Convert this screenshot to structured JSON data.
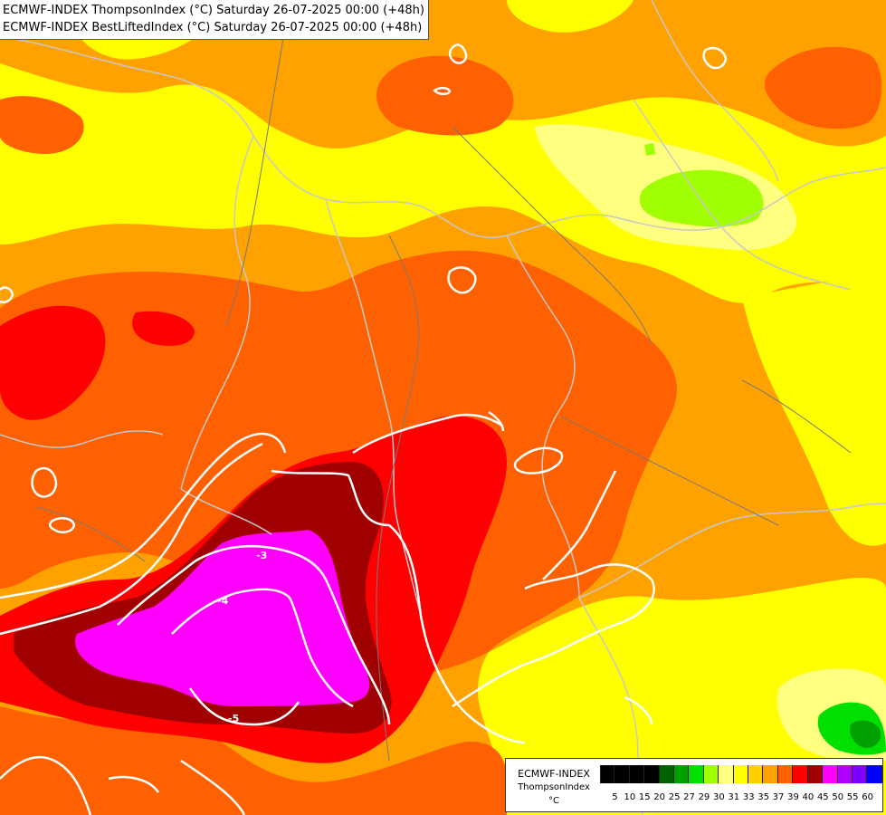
{
  "title_lines": [
    "ECMWF-INDEX ThompsonIndex (°C) Saturday 26-07-2025 00:00 (+48h)",
    "ECMWF-INDEX BestLiftedIndex (°C) Saturday 26-07-2025 00:00 (+48h)"
  ],
  "legend": {
    "title": "ECMWF-INDEX",
    "subtitle": "ThompsonIndex",
    "unit": "°C",
    "tick_labels": [
      "5",
      "10",
      "15",
      "20",
      "25",
      "27",
      "29",
      "30",
      "31",
      "33",
      "35",
      "37",
      "39",
      "40",
      "45",
      "50",
      "55",
      "60"
    ],
    "colors": [
      "#000000",
      "#000000",
      "#000000",
      "#000000",
      "#006400",
      "#00a000",
      "#00e000",
      "#a0ff00",
      "#ffff80",
      "#ffff00",
      "#ffd000",
      "#ffa200",
      "#ff6000",
      "#ff0000",
      "#a00000",
      "#ff00ff",
      "#b000ff",
      "#8000ff",
      "#0000ff"
    ]
  },
  "contour_labels": [
    "-3",
    "-4",
    "-5"
  ],
  "fill_colors": {
    "light_yellow": "#ffff80",
    "yellow": "#ffff00",
    "gold": "#ffd000",
    "orange": "#ffa200",
    "dark_orange": "#ff6000",
    "red": "#ff0000",
    "dark_red": "#a00000",
    "magenta": "#ff00ff",
    "lime": "#a0ff00",
    "green": "#00e000",
    "dark_green": "#00a000"
  },
  "line_colors": {
    "contour": "#ffffff",
    "border": "#c8c8c8",
    "river": "#7a7a7a"
  }
}
